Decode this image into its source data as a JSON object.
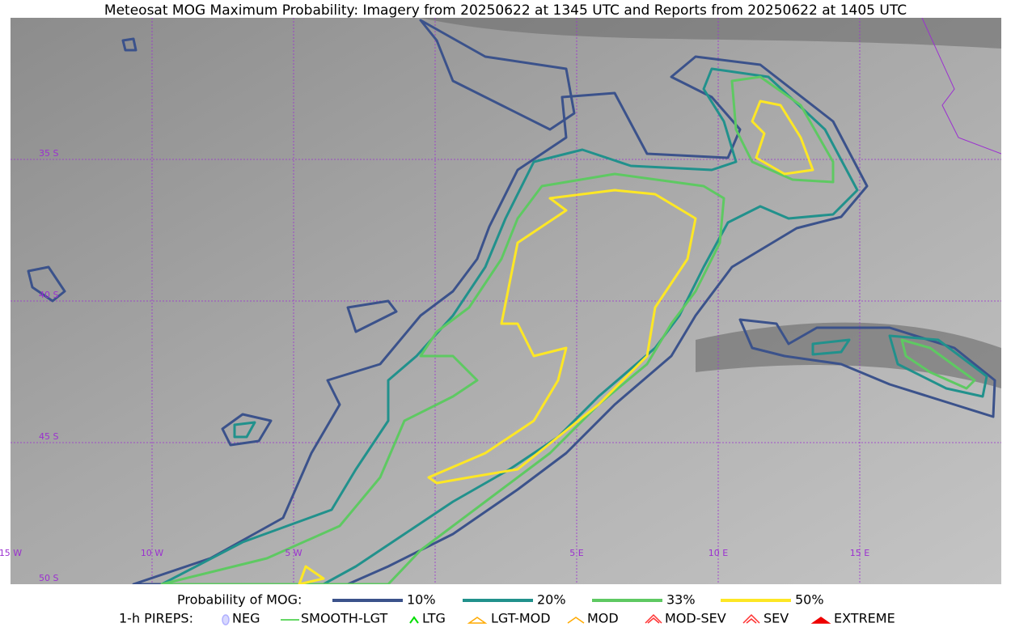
{
  "header": {
    "title": "Meteosat MOG Maximum Probability: Imagery from 20250622 at 1345 UTC and Reports from 20250622 at 1405 UTC"
  },
  "map": {
    "lat_labels": [
      "35 S",
      "40 S",
      "45 S",
      "50 S"
    ],
    "lon_labels": [
      "15 W",
      "10 W",
      "5 W",
      "5 E",
      "10 E",
      "15 E"
    ]
  },
  "legend": {
    "probability": {
      "title": "Probability of MOG:",
      "levels": [
        {
          "label": "10%",
          "color": "#3b528b"
        },
        {
          "label": "20%",
          "color": "#21918c"
        },
        {
          "label": "33%",
          "color": "#5ec962"
        },
        {
          "label": "50%",
          "color": "#fde725"
        }
      ]
    },
    "pireps": {
      "title": "1-h PIREPS:",
      "items": [
        "NEG",
        "SMOOTH-LGT",
        "LTG",
        "LGT-MOD",
        "MOD",
        "MOD-SEV",
        "SEV",
        "EXTREME"
      ]
    }
  }
}
